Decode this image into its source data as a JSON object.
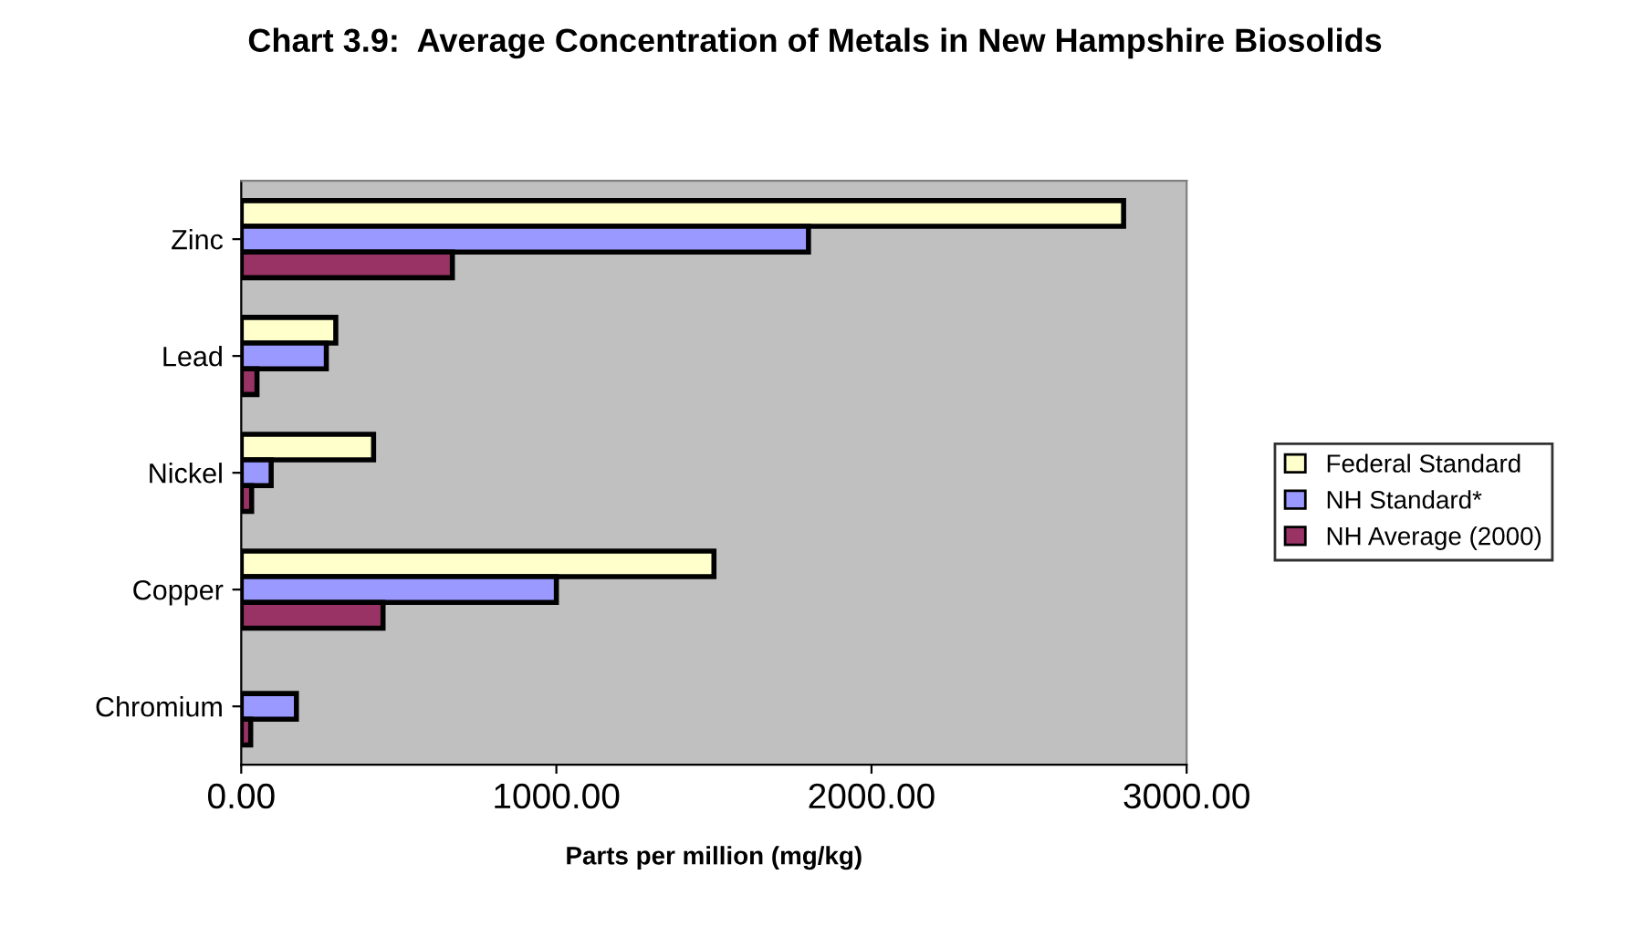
{
  "chart_data": {
    "type": "bar",
    "orientation": "horizontal",
    "title": "Chart 3.9:  Average Concentration of Metals in New Hampshire Biosolids",
    "xlabel": "Parts per million (mg/kg)",
    "categories": [
      "Zinc",
      "Lead",
      "Nickel",
      "Copper",
      "Chromium"
    ],
    "series": [
      {
        "name": "Federal Standard",
        "color": "#ffffcc",
        "values": [
          2800,
          300,
          420,
          1500,
          null
        ]
      },
      {
        "name": "NH Standard*",
        "color": "#9999ff",
        "values": [
          1800,
          270,
          95,
          1000,
          175
        ]
      },
      {
        "name": "NH Average (2000)",
        "color": "#993366",
        "values": [
          670,
          50,
          33,
          450,
          30
        ]
      }
    ],
    "xlim": [
      0,
      3000
    ],
    "xticks": [
      {
        "value": 0,
        "label": "0.00"
      },
      {
        "value": 1000,
        "label": "1000.00"
      },
      {
        "value": 2000,
        "label": "2000.00"
      },
      {
        "value": 3000,
        "label": "3000.00"
      }
    ],
    "grid": false,
    "legend": "right"
  }
}
